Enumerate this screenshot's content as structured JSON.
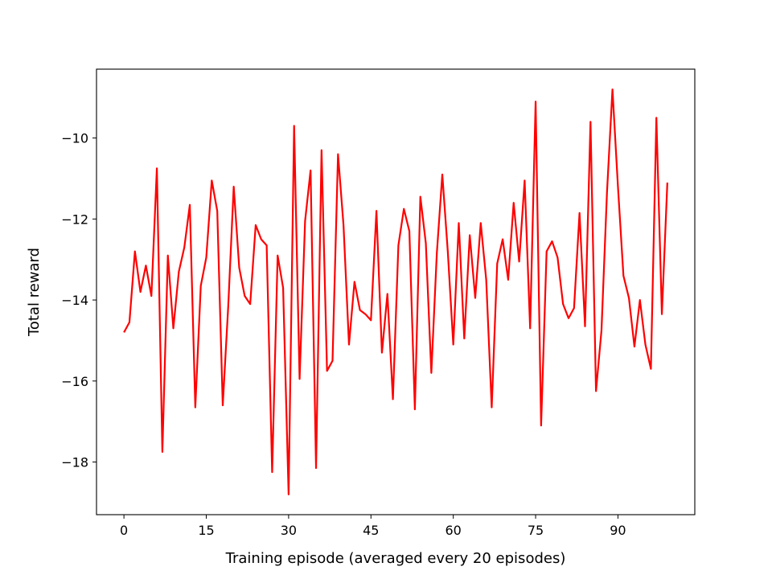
{
  "chart_data": {
    "type": "line",
    "title": "",
    "xlabel": "Training episode (averaged every 20 episodes)",
    "ylabel": "Total reward",
    "xlim": [
      -5,
      104
    ],
    "ylim": [
      -19.3,
      -8.3
    ],
    "xticks": [
      0,
      15,
      30,
      45,
      60,
      75,
      90
    ],
    "yticks": [
      -10,
      -12,
      -14,
      -16,
      -18
    ],
    "grid": false,
    "series": [
      {
        "color": "#ff0000",
        "x": [
          0,
          1,
          2,
          3,
          4,
          5,
          6,
          7,
          8,
          9,
          10,
          11,
          12,
          13,
          14,
          15,
          16,
          17,
          18,
          19,
          20,
          21,
          22,
          23,
          24,
          25,
          26,
          27,
          28,
          29,
          30,
          31,
          32,
          33,
          34,
          35,
          36,
          37,
          38,
          39,
          40,
          41,
          42,
          43,
          44,
          45,
          46,
          47,
          48,
          49,
          50,
          51,
          52,
          53,
          54,
          55,
          56,
          57,
          58,
          59,
          60,
          61,
          62,
          63,
          64,
          65,
          66,
          67,
          68,
          69,
          70,
          71,
          72,
          73,
          74,
          75,
          76,
          77,
          78,
          79,
          80,
          81,
          82,
          83,
          84,
          85,
          86,
          87,
          88,
          89,
          90,
          91,
          92,
          93,
          94,
          95,
          96,
          97,
          98,
          99
        ],
        "y": [
          -14.8,
          -14.55,
          -12.8,
          -13.8,
          -13.15,
          -13.9,
          -10.75,
          -17.75,
          -12.9,
          -14.7,
          -13.3,
          -12.7,
          -11.65,
          -16.65,
          -13.65,
          -12.95,
          -11.05,
          -11.8,
          -16.6,
          -14.15,
          -11.2,
          -13.2,
          -13.9,
          -14.1,
          -12.15,
          -12.5,
          -12.65,
          -18.25,
          -12.9,
          -13.7,
          -18.8,
          -9.7,
          -15.95,
          -12.05,
          -10.8,
          -18.15,
          -10.3,
          -15.75,
          -15.5,
          -10.4,
          -12.15,
          -15.1,
          -13.55,
          -14.25,
          -14.35,
          -14.5,
          -11.8,
          -15.3,
          -13.85,
          -16.45,
          -12.65,
          -11.75,
          -12.3,
          -16.7,
          -11.45,
          -12.6,
          -15.8,
          -12.85,
          -10.9,
          -12.8,
          -15.1,
          -12.1,
          -14.95,
          -12.4,
          -13.95,
          -12.1,
          -13.5,
          -16.65,
          -13.1,
          -12.5,
          -13.5,
          -11.6,
          -13.05,
          -11.05,
          -14.7,
          -9.1,
          -17.1,
          -12.8,
          -12.55,
          -12.95,
          -14.1,
          -14.45,
          -14.2,
          -11.85,
          -14.65,
          -9.6,
          -16.25,
          -14.75,
          -11.35,
          -8.8,
          -11.2,
          -13.4,
          -13.95,
          -15.15,
          -14.0,
          -15.1,
          -15.7,
          -9.5,
          -14.35,
          -11.1
        ]
      }
    ]
  }
}
